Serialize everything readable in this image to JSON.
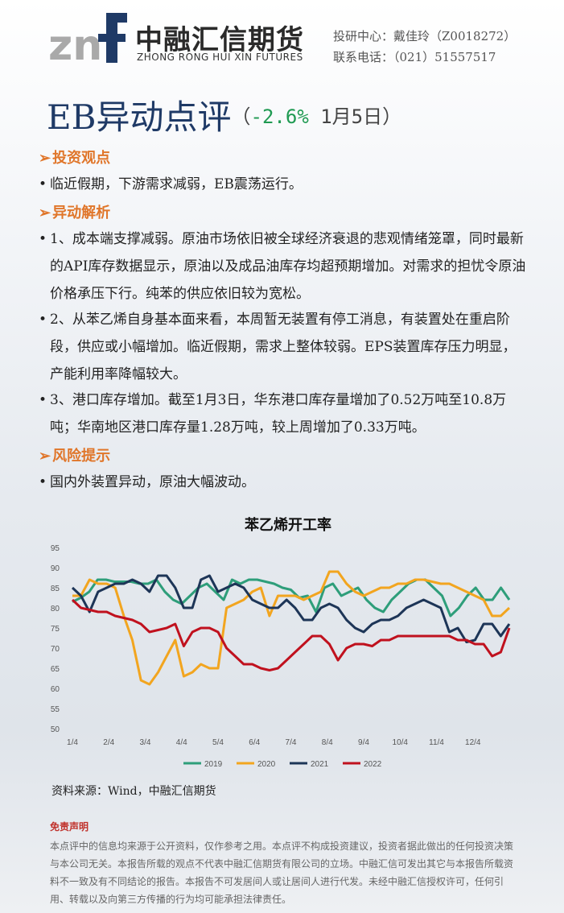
{
  "header": {
    "logo_text": "znf",
    "brand_cn": "中融汇信期货",
    "brand_en": "ZHONG RONG HUI XIN FUTURES",
    "contact_line1": "投研中心：戴佳玲（Z0018272）",
    "contact_line2": "联系电话：（021）51557517"
  },
  "title": {
    "main": "EB异动点评",
    "open": "（",
    "change": "-2.6%",
    "date": " 1月5日",
    "close": "）"
  },
  "sections": {
    "view_heading": "投资观点",
    "view_text": "临近假期，下游需求减弱，EB震荡运行。",
    "analysis_heading": "异动解析",
    "analysis_items": [
      "1、成本端支撑减弱。原油市场依旧被全球经济衰退的悲观情绪笼罩，同时最新的API库存数据显示，原油以及成品油库存均超预期增加。对需求的担忧令原油价格承压下行。纯苯的供应依旧较为宽松。",
      "2、从苯乙烯自身基本面来看，本周暂无装置有停工消息，有装置处在重启阶段，供应或小幅增加。临近假期，需求上整体较弱。EPS装置库存压力明显，产能利用率降幅较大。",
      "3、港口库存增加。截至1月3日，华东港口库存量增加了0.52万吨至10.8万吨；华南地区港口库存量1.28万吨，较上周增加了0.33万吨。"
    ],
    "risk_heading": "风险提示",
    "risk_text": "国内外装置异动，原油大幅波动。"
  },
  "chart_data": {
    "type": "line",
    "title": "苯乙烯开工率",
    "xlabel": "",
    "ylabel": "",
    "ylim": [
      50,
      95
    ],
    "yticks": [
      50,
      55,
      60,
      65,
      70,
      75,
      80,
      85,
      90,
      95
    ],
    "x_tick_labels": [
      "1/4",
      "2/4",
      "3/4",
      "4/4",
      "5/4",
      "6/4",
      "7/4",
      "8/4",
      "9/4",
      "10/4",
      "11/4",
      "12/4"
    ],
    "x_range_weeks": [
      0,
      51
    ],
    "series": [
      {
        "name": "2019",
        "color": "#2e9e7a",
        "values": [
          81.5,
          82.5,
          84,
          87,
          87,
          86.5,
          86.5,
          86.5,
          86,
          86,
          87,
          84,
          82,
          81,
          83,
          85,
          86,
          84,
          82,
          87,
          86,
          87,
          87,
          86.5,
          86,
          85,
          84.5,
          82.5,
          83,
          79,
          85,
          86,
          83,
          84,
          85,
          82,
          80,
          79,
          82,
          84,
          86,
          87,
          87,
          85,
          83,
          78,
          80,
          83,
          85,
          82,
          82,
          85,
          82
        ]
      },
      {
        "name": "2020",
        "color": "#f2a51f",
        "values": [
          83,
          83,
          87,
          86,
          86,
          85,
          78,
          72,
          62,
          61,
          64,
          68,
          72,
          63,
          64,
          66,
          65,
          65,
          80,
          81,
          82,
          84,
          85,
          78,
          83,
          83,
          83,
          82,
          83,
          84,
          89,
          89,
          86,
          84,
          83,
          84,
          85,
          85,
          86,
          86,
          87,
          87,
          86.5,
          86,
          86,
          85,
          84,
          83,
          82,
          78,
          78,
          80
        ]
      },
      {
        "name": "2021",
        "color": "#1d3557",
        "values": [
          85,
          83,
          79,
          84,
          85,
          86,
          86,
          87,
          86,
          84,
          88,
          88,
          85,
          80,
          80,
          87,
          88,
          84,
          85,
          86,
          85,
          82,
          81,
          80,
          80,
          82,
          80,
          77,
          77,
          80,
          81,
          80,
          77,
          75,
          74,
          76,
          77,
          77,
          78,
          80,
          81,
          82,
          81,
          80,
          74,
          75,
          71.5,
          72,
          76,
          76,
          73,
          76
        ]
      },
      {
        "name": "2022",
        "color": "#c0111e",
        "values": [
          82,
          80,
          79.5,
          79,
          79,
          78,
          77.5,
          77,
          76,
          74,
          74.5,
          75,
          76,
          70.5,
          74,
          75,
          75,
          74,
          70,
          68,
          66,
          66,
          65,
          64.5,
          65,
          67,
          69,
          71,
          73,
          73,
          71,
          67,
          70,
          71,
          71,
          70.5,
          72,
          72,
          73,
          73,
          73,
          73,
          73,
          73,
          73,
          72,
          72,
          71,
          71,
          68,
          69,
          75
        ]
      }
    ],
    "legend": "bottom",
    "grid": false
  },
  "source_text": "资料来源：Wind，中融汇信期货",
  "disclaimer": {
    "heading": "免责声明",
    "body": "本点评中的信息均来源于公开资料，仅作参考之用。本点评不构成投资建议，投资者据此做出的任何投资决策与本公司无关。本报告所载的观点不代表中融汇信期货有限公司的立场。中融汇信可发出其它与本报告所载资料不一致及有不同结论的报告。本报告不可发居间人或让居间人进行代发。未经中融汇信授权许可，任何引用、转载以及向第三方传播的行为均可能承担法律责任。"
  }
}
